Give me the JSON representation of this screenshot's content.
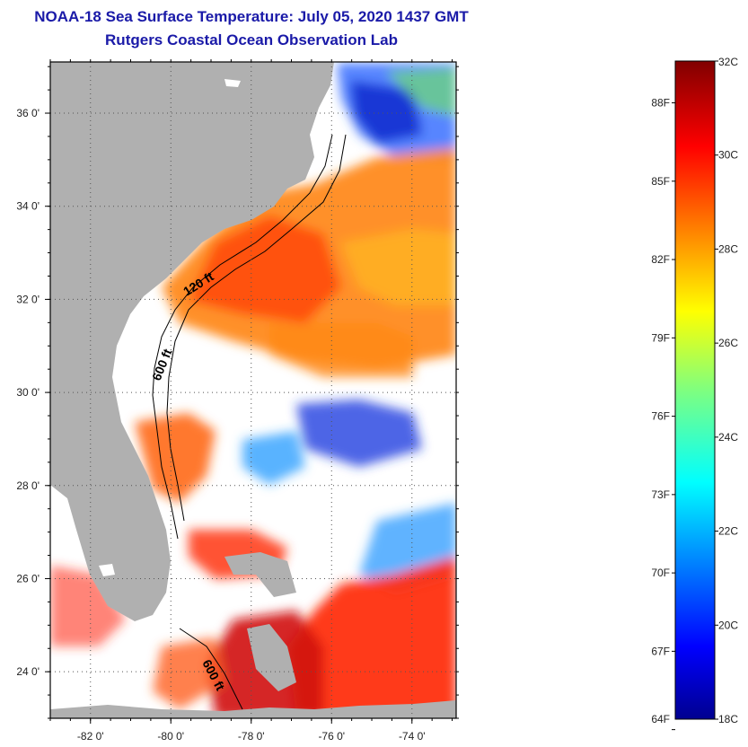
{
  "header": {
    "title": "NOAA-18 Sea Surface Temperature:  July 05, 2020 1437 GMT",
    "subtitle": "Rutgers Coastal Ocean Observation Lab"
  },
  "map": {
    "lon_ticks": [
      {
        "value": -82,
        "label": "-82 0'"
      },
      {
        "value": -80,
        "label": "-80 0'"
      },
      {
        "value": -78,
        "label": "-78 0'"
      },
      {
        "value": -76,
        "label": "-76 0'"
      },
      {
        "value": -74,
        "label": "-74 0'"
      }
    ],
    "lat_ticks": [
      {
        "value": 36,
        "label": "36 0'"
      },
      {
        "value": 34,
        "label": "34 0'"
      },
      {
        "value": 32,
        "label": "32 0'"
      },
      {
        "value": 30,
        "label": "30 0'"
      },
      {
        "value": 28,
        "label": "28 0'"
      },
      {
        "value": 26,
        "label": "26 0'"
      },
      {
        "value": 24,
        "label": "24 0'"
      }
    ],
    "lon_range": [
      -83,
      -72.9
    ],
    "lat_range": [
      23,
      37.1
    ],
    "contour_labels": [
      "120 ft",
      "600 ft",
      "600 ft"
    ],
    "colors": {
      "land": "#b0b0b0",
      "cloud": "#ffffff",
      "frame": "#000000"
    }
  },
  "colorbar": {
    "celsius_labels": [
      "32C",
      "30C",
      "28C",
      "26C",
      "24C",
      "22C",
      "20C",
      "18C"
    ],
    "celsius_values": [
      32,
      30,
      28,
      26,
      24,
      22,
      20,
      18
    ],
    "fahrenheit_labels": [
      "88F",
      "85F",
      "82F",
      "79F",
      "76F",
      "73F",
      "70F",
      "67F",
      "64F"
    ],
    "fahrenheit_values": [
      88,
      85,
      82,
      79,
      76,
      73,
      70,
      67,
      64
    ],
    "range_c": [
      18,
      32
    ]
  }
}
